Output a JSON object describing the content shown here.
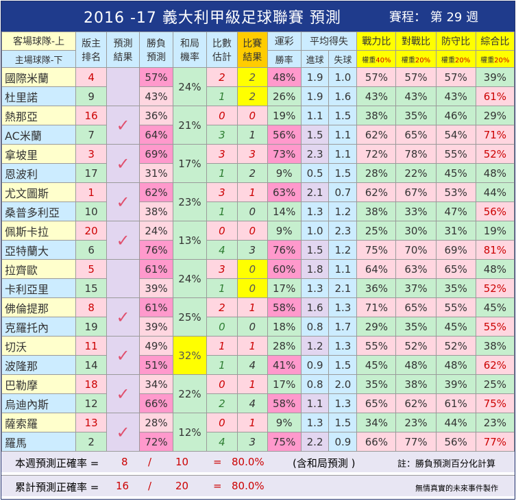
{
  "title": "2016 -17  義大利甲級足球聯賽  預測",
  "round": "賽程：  第 29 週",
  "headers": {
    "team_top": "客場球隊-上",
    "team_bottom": "主場球隊-下",
    "rank_top": "版主",
    "rank_bottom": "排名",
    "pred_top": "預測",
    "pred_bottom": "結果",
    "wl_top": "勝負",
    "wl_bottom": "預測",
    "draw_top": "和局",
    "draw_bottom": "機率",
    "est_top": "比數",
    "est_bottom": "估計",
    "res_top": "比賽",
    "res_bottom": "結果",
    "lottery": "運彩",
    "lottery_sub": "勝率",
    "avg": "平均得失",
    "avg_for": "進球",
    "avg_against": "失球",
    "power": "戰力比",
    "h2h": "對戰比",
    "defense": "防守比",
    "total": "綜合比",
    "weight_label": "權重",
    "w_power": "40%",
    "w_h2h": "20%",
    "w_defense": "20%",
    "w_total": "20%"
  },
  "matches": [
    {
      "away": {
        "name": "國際米蘭",
        "rank": "4",
        "pct": "57%",
        "est": "2",
        "res": "2",
        "lot": "48%",
        "gf": "1.9",
        "ga": "1.0",
        "pw": "57%",
        "h2h": "57%",
        "def": "57%",
        "tot": "39%"
      },
      "home": {
        "name": "杜里諾",
        "rank": "9",
        "pct": "43%",
        "est": "1",
        "res": "2",
        "lot": "26%",
        "gf": "1.9",
        "ga": "1.6",
        "pw": "43%",
        "h2h": "43%",
        "def": "43%",
        "tot": "61%"
      },
      "draw": "24%",
      "check": ""
    },
    {
      "away": {
        "name": "熱那亞",
        "rank": "16",
        "pct": "36%",
        "est": "0",
        "res": "0",
        "lot": "19%",
        "gf": "1.1",
        "ga": "1.5",
        "pw": "38%",
        "h2h": "35%",
        "def": "46%",
        "tot": "29%"
      },
      "home": {
        "name": "AC米蘭",
        "rank": "7",
        "pct": "64%",
        "est": "3",
        "res": "1",
        "lot": "56%",
        "gf": "1.5",
        "ga": "1.1",
        "pw": "62%",
        "h2h": "65%",
        "def": "54%",
        "tot": "71%"
      },
      "draw": "21%",
      "check": "✓"
    },
    {
      "away": {
        "name": "拿坡里",
        "rank": "3",
        "pct": "69%",
        "est": "3",
        "res": "3",
        "lot": "73%",
        "gf": "2.3",
        "ga": "1.1",
        "pw": "72%",
        "h2h": "78%",
        "def": "55%",
        "tot": "52%"
      },
      "home": {
        "name": "恩波利",
        "rank": "17",
        "pct": "31%",
        "est": "1",
        "res": "2",
        "lot": "9%",
        "gf": "0.5",
        "ga": "1.5",
        "pw": "28%",
        "h2h": "22%",
        "def": "45%",
        "tot": "48%"
      },
      "draw": "17%",
      "check": "✓"
    },
    {
      "away": {
        "name": "尤文圖斯",
        "rank": "1",
        "pct": "62%",
        "est": "3",
        "res": "1",
        "lot": "63%",
        "gf": "2.1",
        "ga": "0.7",
        "pw": "62%",
        "h2h": "67%",
        "def": "53%",
        "tot": "44%"
      },
      "home": {
        "name": "桑普多利亞",
        "rank": "10",
        "pct": "38%",
        "est": "1",
        "res": "0",
        "lot": "14%",
        "gf": "1.3",
        "ga": "1.2",
        "pw": "38%",
        "h2h": "33%",
        "def": "47%",
        "tot": "56%"
      },
      "draw": "23%",
      "check": "✓"
    },
    {
      "away": {
        "name": "佩斯卡拉",
        "rank": "20",
        "pct": "24%",
        "est": "0",
        "res": "0",
        "lot": "9%",
        "gf": "1.0",
        "ga": "2.3",
        "pw": "25%",
        "h2h": "30%",
        "def": "31%",
        "tot": "19%"
      },
      "home": {
        "name": "亞特蘭大",
        "rank": "6",
        "pct": "76%",
        "est": "4",
        "res": "3",
        "lot": "76%",
        "gf": "1.5",
        "ga": "1.2",
        "pw": "75%",
        "h2h": "70%",
        "def": "69%",
        "tot": "81%"
      },
      "draw": "13%",
      "check": "✓"
    },
    {
      "away": {
        "name": "拉齊歐",
        "rank": "5",
        "pct": "61%",
        "est": "3",
        "res": "0",
        "lot": "60%",
        "gf": "1.8",
        "ga": "1.1",
        "pw": "64%",
        "h2h": "63%",
        "def": "65%",
        "tot": "48%"
      },
      "home": {
        "name": "卡利亞里",
        "rank": "15",
        "pct": "39%",
        "est": "1",
        "res": "0",
        "lot": "17%",
        "gf": "1.3",
        "ga": "2.1",
        "pw": "36%",
        "h2h": "37%",
        "def": "35%",
        "tot": "52%"
      },
      "draw": "24%",
      "check": ""
    },
    {
      "away": {
        "name": "佛倫提那",
        "rank": "8",
        "pct": "61%",
        "est": "2",
        "res": "1",
        "lot": "58%",
        "gf": "1.6",
        "ga": "1.3",
        "pw": "71%",
        "h2h": "65%",
        "def": "55%",
        "tot": "45%"
      },
      "home": {
        "name": "克羅托內",
        "rank": "19",
        "pct": "39%",
        "est": "0",
        "res": "0",
        "lot": "18%",
        "gf": "0.8",
        "ga": "1.7",
        "pw": "29%",
        "h2h": "35%",
        "def": "45%",
        "tot": "55%"
      },
      "draw": "25%",
      "check": "✓"
    },
    {
      "away": {
        "name": "切沃",
        "rank": "11",
        "pct": "49%",
        "est": "1",
        "res": "1",
        "lot": "28%",
        "gf": "1.2",
        "ga": "1.3",
        "pw": "55%",
        "h2h": "52%",
        "def": "52%",
        "tot": "38%"
      },
      "home": {
        "name": "波隆那",
        "rank": "14",
        "pct": "51%",
        "est": "1",
        "res": "4",
        "lot": "41%",
        "gf": "0.9",
        "ga": "1.5",
        "pw": "45%",
        "h2h": "48%",
        "def": "48%",
        "tot": "62%"
      },
      "draw": "32%",
      "check": "✓"
    },
    {
      "away": {
        "name": "巴勒摩",
        "rank": "18",
        "pct": "34%",
        "est": "0",
        "res": "1",
        "lot": "17%",
        "gf": "0.8",
        "ga": "2.0",
        "pw": "35%",
        "h2h": "38%",
        "def": "39%",
        "tot": "25%"
      },
      "home": {
        "name": "烏迪內斯",
        "rank": "12",
        "pct": "66%",
        "est": "2",
        "res": "4",
        "lot": "58%",
        "gf": "1.1",
        "ga": "1.3",
        "pw": "65%",
        "h2h": "62%",
        "def": "61%",
        "tot": "75%"
      },
      "draw": "22%",
      "check": "✓"
    },
    {
      "away": {
        "name": "薩索羅",
        "rank": "13",
        "pct": "28%",
        "est": "0",
        "res": "1",
        "lot": "9%",
        "gf": "1.3",
        "ga": "1.5",
        "pw": "34%",
        "h2h": "23%",
        "def": "44%",
        "tot": "23%"
      },
      "home": {
        "name": "羅馬",
        "rank": "2",
        "pct": "72%",
        "est": "4",
        "res": "3",
        "lot": "75%",
        "gf": "2.2",
        "ga": "0.9",
        "pw": "66%",
        "h2h": "77%",
        "def": "56%",
        "tot": "77%"
      },
      "draw": "12%",
      "check": "✓"
    }
  ],
  "footer": {
    "week_label": "本週預測正確率 =",
    "week_correct": "8",
    "week_total": "10",
    "week_rate": "80.0%",
    "week_note": "(含和局預測 )",
    "note": "註：勝負預測百分化計算",
    "cum_label": "累計預測正確率 =",
    "cum_correct": "16",
    "cum_total": "20",
    "cum_rate": "80.0%",
    "credit": "無情真實的未來事件製作",
    "slash": "/",
    "equals": "="
  }
}
